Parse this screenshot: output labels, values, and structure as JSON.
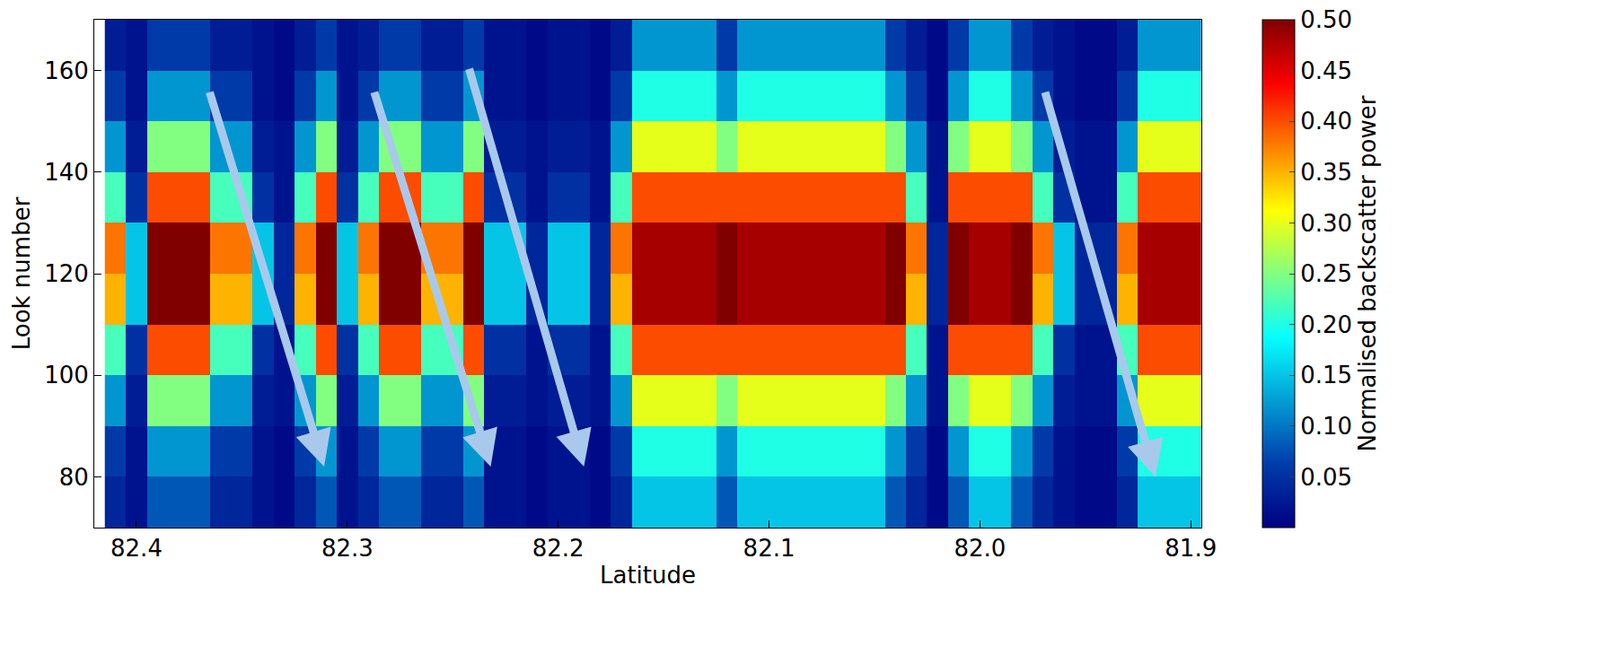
{
  "chart_data": {
    "type": "heatmap",
    "x_label": "Latitude",
    "y_label": "Look number",
    "color": "Jet",
    "x": [
      82.41,
      82.4,
      82.39,
      82.38,
      82.37,
      82.36,
      82.35,
      82.34,
      82.33,
      82.32,
      82.31,
      82.3,
      82.29,
      82.28,
      82.27,
      82.26,
      82.25,
      82.24,
      82.23,
      82.22,
      82.21,
      82.2,
      82.19,
      82.18,
      82.17,
      82.16,
      82.15,
      82.14,
      82.13,
      82.12,
      82.11,
      82.1,
      82.09,
      82.08,
      82.07,
      82.06,
      82.05,
      82.04,
      82.03,
      82.02,
      82.01,
      82.0,
      81.99,
      81.98,
      81.97,
      81.96,
      81.95,
      81.94,
      81.93,
      81.92,
      81.91,
      81.9
    ],
    "y": [
      75,
      85,
      95,
      105,
      115,
      125,
      135,
      145,
      155,
      165
    ],
    "z": [
      [
        0.04,
        0.02,
        0.08,
        0.08,
        0.08,
        0.04,
        0.04,
        0.02,
        0.01,
        0.04,
        0.08,
        0.02,
        0.04,
        0.08,
        0.08,
        0.04,
        0.04,
        0.08,
        0.02,
        0.02,
        0.01,
        0.02,
        0.02,
        0.01,
        0.04,
        0.15,
        0.15,
        0.15,
        0.15,
        0.08,
        0.15,
        0.15,
        0.15,
        0.15,
        0.15,
        0.15,
        0.15,
        0.08,
        0.04,
        0.01,
        0.08,
        0.15,
        0.15,
        0.08,
        0.04,
        0.02,
        0.01,
        0.01,
        0.04,
        0.15,
        0.15,
        0.15
      ],
      [
        0.06,
        0.02,
        0.12,
        0.12,
        0.12,
        0.06,
        0.06,
        0.02,
        0.01,
        0.06,
        0.12,
        0.02,
        0.06,
        0.12,
        0.12,
        0.06,
        0.06,
        0.12,
        0.02,
        0.02,
        0.01,
        0.02,
        0.02,
        0.01,
        0.06,
        0.2,
        0.2,
        0.2,
        0.2,
        0.12,
        0.2,
        0.2,
        0.2,
        0.2,
        0.2,
        0.2,
        0.2,
        0.12,
        0.06,
        0.01,
        0.12,
        0.2,
        0.2,
        0.12,
        0.06,
        0.02,
        0.01,
        0.01,
        0.06,
        0.2,
        0.2,
        0.2
      ],
      [
        0.12,
        0.03,
        0.25,
        0.25,
        0.25,
        0.12,
        0.12,
        0.03,
        0.02,
        0.12,
        0.25,
        0.03,
        0.12,
        0.25,
        0.25,
        0.12,
        0.12,
        0.25,
        0.03,
        0.03,
        0.02,
        0.03,
        0.03,
        0.02,
        0.12,
        0.3,
        0.3,
        0.3,
        0.3,
        0.25,
        0.3,
        0.3,
        0.3,
        0.3,
        0.3,
        0.3,
        0.3,
        0.25,
        0.12,
        0.02,
        0.25,
        0.3,
        0.3,
        0.25,
        0.12,
        0.03,
        0.02,
        0.02,
        0.12,
        0.3,
        0.3,
        0.3
      ],
      [
        0.22,
        0.05,
        0.4,
        0.4,
        0.4,
        0.22,
        0.22,
        0.05,
        0.02,
        0.22,
        0.4,
        0.05,
        0.22,
        0.4,
        0.4,
        0.22,
        0.22,
        0.4,
        0.05,
        0.05,
        0.02,
        0.05,
        0.05,
        0.02,
        0.22,
        0.4,
        0.4,
        0.4,
        0.4,
        0.4,
        0.4,
        0.4,
        0.4,
        0.4,
        0.4,
        0.4,
        0.4,
        0.4,
        0.22,
        0.02,
        0.4,
        0.4,
        0.4,
        0.4,
        0.22,
        0.05,
        0.02,
        0.02,
        0.22,
        0.4,
        0.4,
        0.4
      ],
      [
        0.35,
        0.15,
        0.5,
        0.5,
        0.5,
        0.35,
        0.35,
        0.15,
        0.04,
        0.35,
        0.5,
        0.15,
        0.35,
        0.5,
        0.5,
        0.35,
        0.35,
        0.5,
        0.15,
        0.15,
        0.04,
        0.15,
        0.15,
        0.04,
        0.35,
        0.48,
        0.48,
        0.48,
        0.48,
        0.5,
        0.48,
        0.48,
        0.48,
        0.48,
        0.48,
        0.48,
        0.48,
        0.5,
        0.35,
        0.04,
        0.5,
        0.48,
        0.48,
        0.5,
        0.35,
        0.15,
        0.04,
        0.04,
        0.35,
        0.48,
        0.48,
        0.48
      ],
      [
        0.38,
        0.15,
        0.5,
        0.5,
        0.5,
        0.38,
        0.38,
        0.15,
        0.04,
        0.38,
        0.5,
        0.15,
        0.38,
        0.5,
        0.5,
        0.38,
        0.38,
        0.5,
        0.15,
        0.15,
        0.04,
        0.15,
        0.15,
        0.04,
        0.38,
        0.48,
        0.48,
        0.48,
        0.48,
        0.5,
        0.48,
        0.48,
        0.48,
        0.48,
        0.48,
        0.48,
        0.48,
        0.5,
        0.38,
        0.04,
        0.5,
        0.48,
        0.48,
        0.5,
        0.38,
        0.15,
        0.04,
        0.04,
        0.38,
        0.48,
        0.48,
        0.48
      ],
      [
        0.22,
        0.05,
        0.4,
        0.4,
        0.4,
        0.22,
        0.22,
        0.05,
        0.02,
        0.22,
        0.4,
        0.05,
        0.22,
        0.4,
        0.4,
        0.22,
        0.22,
        0.4,
        0.05,
        0.05,
        0.02,
        0.05,
        0.05,
        0.02,
        0.22,
        0.4,
        0.4,
        0.4,
        0.4,
        0.4,
        0.4,
        0.4,
        0.4,
        0.4,
        0.4,
        0.4,
        0.4,
        0.4,
        0.22,
        0.02,
        0.4,
        0.4,
        0.4,
        0.4,
        0.22,
        0.05,
        0.02,
        0.02,
        0.22,
        0.4,
        0.4,
        0.4
      ],
      [
        0.12,
        0.03,
        0.25,
        0.25,
        0.25,
        0.12,
        0.12,
        0.03,
        0.02,
        0.12,
        0.25,
        0.03,
        0.12,
        0.25,
        0.25,
        0.12,
        0.12,
        0.25,
        0.03,
        0.03,
        0.02,
        0.03,
        0.03,
        0.02,
        0.12,
        0.3,
        0.3,
        0.3,
        0.3,
        0.25,
        0.3,
        0.3,
        0.3,
        0.3,
        0.3,
        0.3,
        0.3,
        0.25,
        0.12,
        0.02,
        0.25,
        0.3,
        0.3,
        0.25,
        0.12,
        0.03,
        0.02,
        0.02,
        0.12,
        0.3,
        0.3,
        0.3
      ],
      [
        0.06,
        0.02,
        0.12,
        0.12,
        0.12,
        0.06,
        0.06,
        0.02,
        0.01,
        0.06,
        0.12,
        0.02,
        0.06,
        0.12,
        0.12,
        0.06,
        0.06,
        0.12,
        0.02,
        0.02,
        0.01,
        0.02,
        0.02,
        0.01,
        0.06,
        0.2,
        0.2,
        0.2,
        0.2,
        0.12,
        0.2,
        0.2,
        0.2,
        0.2,
        0.2,
        0.2,
        0.2,
        0.12,
        0.06,
        0.01,
        0.12,
        0.2,
        0.2,
        0.12,
        0.06,
        0.02,
        0.01,
        0.01,
        0.06,
        0.2,
        0.2,
        0.2
      ],
      [
        0.03,
        0.02,
        0.06,
        0.06,
        0.06,
        0.03,
        0.03,
        0.02,
        0.01,
        0.03,
        0.06,
        0.02,
        0.03,
        0.06,
        0.06,
        0.03,
        0.03,
        0.06,
        0.02,
        0.02,
        0.01,
        0.02,
        0.02,
        0.01,
        0.03,
        0.12,
        0.12,
        0.12,
        0.12,
        0.06,
        0.12,
        0.12,
        0.12,
        0.12,
        0.12,
        0.12,
        0.12,
        0.06,
        0.03,
        0.01,
        0.06,
        0.12,
        0.12,
        0.06,
        0.03,
        0.02,
        0.01,
        0.01,
        0.03,
        0.12,
        0.12,
        0.12
      ]
    ],
    "xlim": [
      82.42,
      81.895
    ],
    "xticks": [
      82.4,
      82.3,
      82.2,
      82.1,
      {
        "value": 82,
        "label": "82.0"
      },
      81.9
    ],
    "ylim": [
      70,
      170
    ],
    "yticks": [
      80,
      100,
      120,
      140,
      160
    ],
    "colorbar": {
      "title": "Normalised backscatter power",
      "range": [
        0,
        0.5
      ],
      "ticks": [
        0.05,
        {
          "value": 0.1,
          "label": "0.10"
        },
        0.15,
        {
          "value": 0.2,
          "label": "0.20"
        },
        0.25,
        {
          "value": 0.3,
          "label": "0.30"
        },
        0.35,
        {
          "value": 0.4,
          "label": "0.40"
        },
        0.45,
        {
          "value": 0.5,
          "label": "0.50"
        }
      ]
    }
  }
}
